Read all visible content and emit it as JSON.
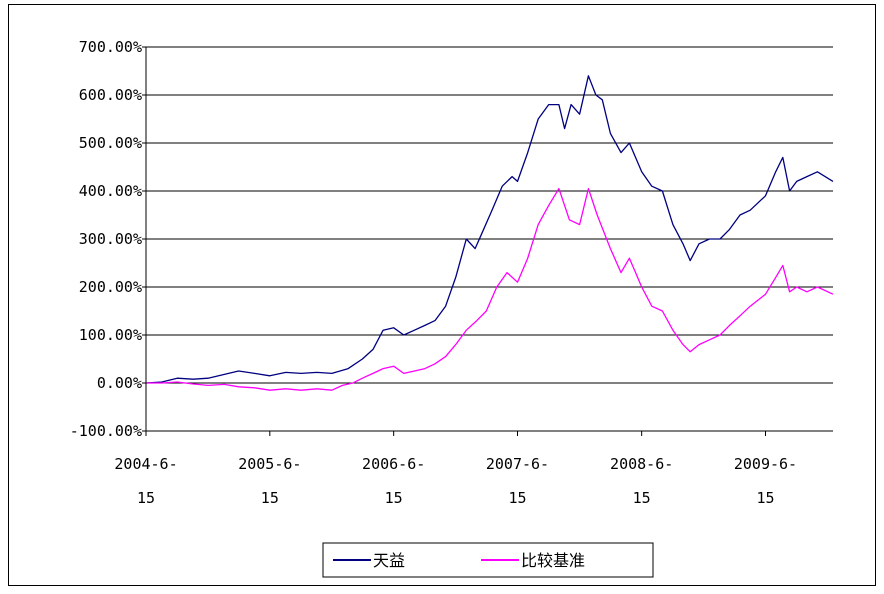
{
  "chart_data": {
    "type": "line",
    "title": "",
    "xlabel": "",
    "ylabel": "",
    "ylim": [
      -100,
      700
    ],
    "y_ticks": [
      -100,
      0,
      100,
      200,
      300,
      400,
      500,
      600,
      700
    ],
    "y_tick_labels": [
      "-100.00%",
      "0.00%",
      "100.00%",
      "200.00%",
      "300.00%",
      "400.00%",
      "500.00%",
      "600.00%",
      "700.00%"
    ],
    "x_range": [
      "2004-06-15",
      "2009-12-31"
    ],
    "x_ticks": [
      {
        "date": "2004-06-15",
        "line1": "2004-6-",
        "line2": "15"
      },
      {
        "date": "2005-06-15",
        "line1": "2005-6-",
        "line2": "15"
      },
      {
        "date": "2006-06-15",
        "line1": "2006-6-",
        "line2": "15"
      },
      {
        "date": "2007-06-15",
        "line1": "2007-6-",
        "line2": "15"
      },
      {
        "date": "2008-06-15",
        "line1": "2008-6-",
        "line2": "15"
      },
      {
        "date": "2009-06-15",
        "line1": "2009-6-",
        "line2": "15"
      }
    ],
    "grid": "horizontal",
    "legend_position": "bottom-center",
    "series": [
      {
        "name": "天益",
        "color": "#000080",
        "points": [
          [
            "2004-06-15",
            0
          ],
          [
            "2004-08-01",
            2
          ],
          [
            "2004-09-15",
            10
          ],
          [
            "2004-11-01",
            8
          ],
          [
            "2004-12-15",
            10
          ],
          [
            "2005-02-01",
            18
          ],
          [
            "2005-03-15",
            25
          ],
          [
            "2005-05-01",
            20
          ],
          [
            "2005-06-15",
            15
          ],
          [
            "2005-08-01",
            22
          ],
          [
            "2005-09-15",
            20
          ],
          [
            "2005-11-01",
            22
          ],
          [
            "2005-12-15",
            20
          ],
          [
            "2006-02-01",
            30
          ],
          [
            "2006-03-15",
            50
          ],
          [
            "2006-04-15",
            70
          ],
          [
            "2006-05-15",
            110
          ],
          [
            "2006-06-15",
            115
          ],
          [
            "2006-07-15",
            100
          ],
          [
            "2006-08-15",
            110
          ],
          [
            "2006-09-15",
            120
          ],
          [
            "2006-10-15",
            130
          ],
          [
            "2006-11-15",
            160
          ],
          [
            "2006-12-15",
            220
          ],
          [
            "2007-01-15",
            300
          ],
          [
            "2007-02-10",
            280
          ],
          [
            "2007-03-01",
            310
          ],
          [
            "2007-04-01",
            360
          ],
          [
            "2007-05-01",
            410
          ],
          [
            "2007-05-30",
            430
          ],
          [
            "2007-06-15",
            420
          ],
          [
            "2007-07-15",
            480
          ],
          [
            "2007-08-15",
            550
          ],
          [
            "2007-09-15",
            580
          ],
          [
            "2007-10-15",
            580
          ],
          [
            "2007-11-01",
            530
          ],
          [
            "2007-11-20",
            580
          ],
          [
            "2007-12-15",
            560
          ],
          [
            "2008-01-10",
            640
          ],
          [
            "2008-02-01",
            600
          ],
          [
            "2008-02-20",
            590
          ],
          [
            "2008-03-15",
            520
          ],
          [
            "2008-04-15",
            480
          ],
          [
            "2008-05-10",
            500
          ],
          [
            "2008-06-15",
            440
          ],
          [
            "2008-07-15",
            410
          ],
          [
            "2008-08-15",
            400
          ],
          [
            "2008-09-15",
            330
          ],
          [
            "2008-10-15",
            290
          ],
          [
            "2008-11-05",
            255
          ],
          [
            "2008-12-01",
            290
          ],
          [
            "2009-01-01",
            300
          ],
          [
            "2009-02-01",
            300
          ],
          [
            "2009-03-01",
            320
          ],
          [
            "2009-04-01",
            350
          ],
          [
            "2009-05-01",
            360
          ],
          [
            "2009-06-15",
            390
          ],
          [
            "2009-07-15",
            440
          ],
          [
            "2009-08-05",
            470
          ],
          [
            "2009-08-25",
            400
          ],
          [
            "2009-09-15",
            420
          ],
          [
            "2009-10-15",
            430
          ],
          [
            "2009-11-15",
            440
          ],
          [
            "2009-12-31",
            420
          ]
        ]
      },
      {
        "name": "比较基准",
        "color": "#FF00FF",
        "points": [
          [
            "2004-06-15",
            0
          ],
          [
            "2004-08-01",
            0
          ],
          [
            "2004-09-15",
            2
          ],
          [
            "2004-11-01",
            -2
          ],
          [
            "2004-12-15",
            -5
          ],
          [
            "2005-02-01",
            -3
          ],
          [
            "2005-03-15",
            -8
          ],
          [
            "2005-05-01",
            -10
          ],
          [
            "2005-06-15",
            -15
          ],
          [
            "2005-08-01",
            -12
          ],
          [
            "2005-09-15",
            -15
          ],
          [
            "2005-11-01",
            -12
          ],
          [
            "2005-12-15",
            -15
          ],
          [
            "2006-01-15",
            -5
          ],
          [
            "2006-02-15",
            0
          ],
          [
            "2006-03-15",
            10
          ],
          [
            "2006-04-15",
            20
          ],
          [
            "2006-05-15",
            30
          ],
          [
            "2006-06-15",
            35
          ],
          [
            "2006-07-15",
            20
          ],
          [
            "2006-08-15",
            25
          ],
          [
            "2006-09-15",
            30
          ],
          [
            "2006-10-15",
            40
          ],
          [
            "2006-11-15",
            55
          ],
          [
            "2006-12-15",
            80
          ],
          [
            "2007-01-15",
            110
          ],
          [
            "2007-02-15",
            130
          ],
          [
            "2007-03-15",
            150
          ],
          [
            "2007-04-15",
            200
          ],
          [
            "2007-05-15",
            230
          ],
          [
            "2007-06-15",
            210
          ],
          [
            "2007-07-15",
            260
          ],
          [
            "2007-08-15",
            330
          ],
          [
            "2007-09-15",
            370
          ],
          [
            "2007-10-15",
            405
          ],
          [
            "2007-11-15",
            340
          ],
          [
            "2007-12-15",
            330
          ],
          [
            "2008-01-10",
            405
          ],
          [
            "2008-02-05",
            350
          ],
          [
            "2008-03-15",
            280
          ],
          [
            "2008-04-15",
            230
          ],
          [
            "2008-05-10",
            260
          ],
          [
            "2008-06-15",
            200
          ],
          [
            "2008-07-15",
            160
          ],
          [
            "2008-08-15",
            150
          ],
          [
            "2008-09-15",
            110
          ],
          [
            "2008-10-15",
            80
          ],
          [
            "2008-11-05",
            65
          ],
          [
            "2008-12-01",
            80
          ],
          [
            "2009-01-01",
            90
          ],
          [
            "2009-02-01",
            100
          ],
          [
            "2009-03-01",
            120
          ],
          [
            "2009-04-01",
            140
          ],
          [
            "2009-05-01",
            160
          ],
          [
            "2009-06-15",
            185
          ],
          [
            "2009-07-15",
            220
          ],
          [
            "2009-08-05",
            245
          ],
          [
            "2009-08-25",
            190
          ],
          [
            "2009-09-15",
            200
          ],
          [
            "2009-10-15",
            190
          ],
          [
            "2009-11-15",
            200
          ],
          [
            "2009-12-31",
            185
          ]
        ]
      }
    ]
  }
}
